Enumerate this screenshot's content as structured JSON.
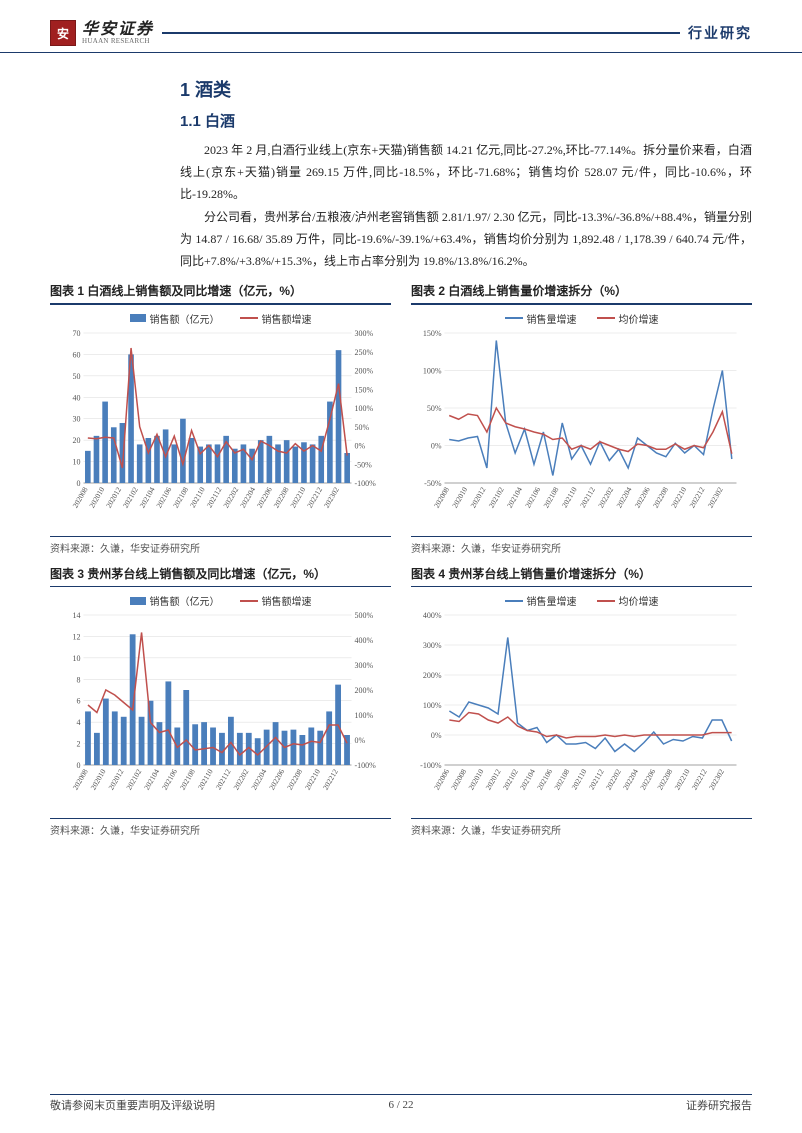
{
  "header": {
    "logo_mark": "安",
    "logo_cn": "华安证券",
    "logo_en": "HUAAN RESEARCH",
    "right": "行业研究"
  },
  "headings": {
    "h1": "1 酒类",
    "h2": "1.1 白酒"
  },
  "paragraphs": {
    "p1": "2023 年 2 月,白酒行业线上(京东+天猫)销售额 14.21 亿元,同比-27.2%,环比-77.14%。拆分量价来看，白酒线上(京东+天猫)销量 269.15 万件,同比-18.5%，环比-71.68%；销售均价 528.07 元/件，同比-10.6%，环比-19.28%。",
    "p2": "分公司看，贵州茅台/五粮液/泸州老窖销售额 2.81/1.97/ 2.30 亿元，同比-13.3%/-36.8%/+88.4%，销量分别为 14.87 / 16.68/ 35.89 万件，同比-19.6%/-39.1%/+63.4%，销售均价分别为 1,892.48 / 1,178.39 / 640.74 元/件，同比+7.8%/+3.8%/+15.3%，线上市占率分别为 19.8%/13.8%/16.2%。"
  },
  "charts": {
    "common": {
      "source": "资料来源：久谦，华安证券研究所",
      "x_labels": [
        "202008",
        "202010",
        "202012",
        "202102",
        "202104",
        "202106",
        "202108",
        "202110",
        "202112",
        "202202",
        "202204",
        "202206",
        "202208",
        "202210",
        "202212",
        "202302"
      ],
      "colors": {
        "bar": "#4a7ebb",
        "line_red": "#c0504d",
        "line_blue": "#4a7ebb",
        "grid": "#d9d9d9",
        "axis": "#888888",
        "bg": "#ffffff"
      },
      "font_size_tick": 8,
      "font_size_legend": 10
    },
    "c1": {
      "title": "图表 1 白酒线上销售额及同比增速（亿元，%）",
      "type": "bar+line",
      "legend_bar": "销售额（亿元）",
      "legend_line": "销售额增速",
      "yl": {
        "min": 0,
        "max": 70,
        "step": 10
      },
      "yr": {
        "min": -100,
        "max": 300,
        "step": 50,
        "suffix": "%"
      },
      "bars": [
        15,
        22,
        38,
        26,
        28,
        60,
        18,
        21,
        22,
        25,
        18,
        30,
        21,
        17,
        18,
        18,
        22,
        16,
        18,
        16,
        20,
        22,
        18,
        20,
        17,
        19,
        18,
        22,
        38,
        62,
        14
      ],
      "line": [
        20,
        18,
        22,
        20,
        -60,
        260,
        50,
        -20,
        30,
        -30,
        25,
        -50,
        40,
        -22,
        0,
        -30,
        10,
        -20,
        -10,
        -38,
        12,
        0,
        -15,
        -20,
        5,
        -15,
        0,
        -15,
        70,
        165,
        -27
      ]
    },
    "c2": {
      "title": "图表 2 白酒线上销售量价增速拆分（%）",
      "type": "2line",
      "legend_a": "销售量增速",
      "legend_b": "均价增速",
      "yl": {
        "min": -50,
        "max": 150,
        "step": 50,
        "suffix": "%"
      },
      "line_a": [
        8,
        6,
        10,
        12,
        -30,
        140,
        30,
        -10,
        22,
        -25,
        18,
        -40,
        30,
        -18,
        0,
        -25,
        5,
        -20,
        -5,
        -30,
        10,
        0,
        -10,
        -15,
        3,
        -10,
        0,
        -12,
        48,
        100,
        -18
      ],
      "line_b": [
        40,
        35,
        42,
        40,
        18,
        50,
        30,
        25,
        22,
        18,
        15,
        8,
        10,
        -5,
        0,
        -5,
        5,
        0,
        -5,
        -8,
        2,
        0,
        -5,
        -5,
        2,
        -5,
        0,
        -3,
        18,
        45,
        -11
      ]
    },
    "c3": {
      "title": "图表 3 贵州茅台线上销售额及同比增速（亿元，%）",
      "type": "bar+line",
      "legend_bar": "销售额（亿元）",
      "legend_line": "销售额增速",
      "yl": {
        "min": 0,
        "max": 14,
        "step": 2
      },
      "yr": {
        "min": -100,
        "max": 500,
        "step": 100,
        "suffix": "%"
      },
      "x_labels": [
        "202008",
        "202010",
        "202012",
        "202102",
        "202104",
        "202106",
        "202108",
        "202110",
        "202112",
        "202202",
        "202204",
        "202206",
        "202208",
        "202210",
        "202212"
      ],
      "bars": [
        5,
        3,
        6.2,
        5,
        4.5,
        12.2,
        4.5,
        6,
        4,
        7.8,
        3.5,
        7,
        3.8,
        4,
        3.5,
        3,
        4.5,
        3,
        3,
        2.5,
        3.3,
        4,
        3.2,
        3.3,
        2.8,
        3.5,
        3.2,
        5,
        7.5,
        2.8
      ],
      "line": [
        140,
        110,
        200,
        180,
        150,
        120,
        430,
        70,
        30,
        40,
        -30,
        0,
        -40,
        -35,
        -30,
        -50,
        -10,
        -60,
        -30,
        -60,
        -25,
        10,
        -30,
        -15,
        -20,
        -5,
        -10,
        60,
        60,
        -13
      ]
    },
    "c4": {
      "title": "图表 4 贵州茅台线上销售量价增速拆分（%）",
      "type": "2line",
      "legend_a": "销售量增速",
      "legend_b": "均价增速",
      "yl": {
        "min": -100,
        "max": 400,
        "step": 100,
        "suffix": "%"
      },
      "x_labels": [
        "202006",
        "202008",
        "202010",
        "202012",
        "202102",
        "202104",
        "202106",
        "202108",
        "202110",
        "202112",
        "202202",
        "202204",
        "202206",
        "202208",
        "202210",
        "202212",
        "202302"
      ],
      "line_a": [
        80,
        60,
        110,
        100,
        90,
        70,
        325,
        40,
        15,
        25,
        -25,
        0,
        -30,
        -30,
        -25,
        -45,
        -10,
        -55,
        -30,
        -55,
        -25,
        10,
        -30,
        -15,
        -20,
        -5,
        -10,
        50,
        50,
        -20
      ],
      "line_b": [
        50,
        45,
        75,
        70,
        50,
        40,
        60,
        30,
        15,
        10,
        -5,
        0,
        -10,
        -5,
        -5,
        -5,
        0,
        -5,
        0,
        -5,
        0,
        0,
        0,
        0,
        0,
        0,
        0,
        8,
        8,
        8
      ]
    }
  },
  "footer": {
    "left": "敬请参阅末页重要声明及评级说明",
    "center": "6 / 22",
    "right": "证券研究报告"
  }
}
